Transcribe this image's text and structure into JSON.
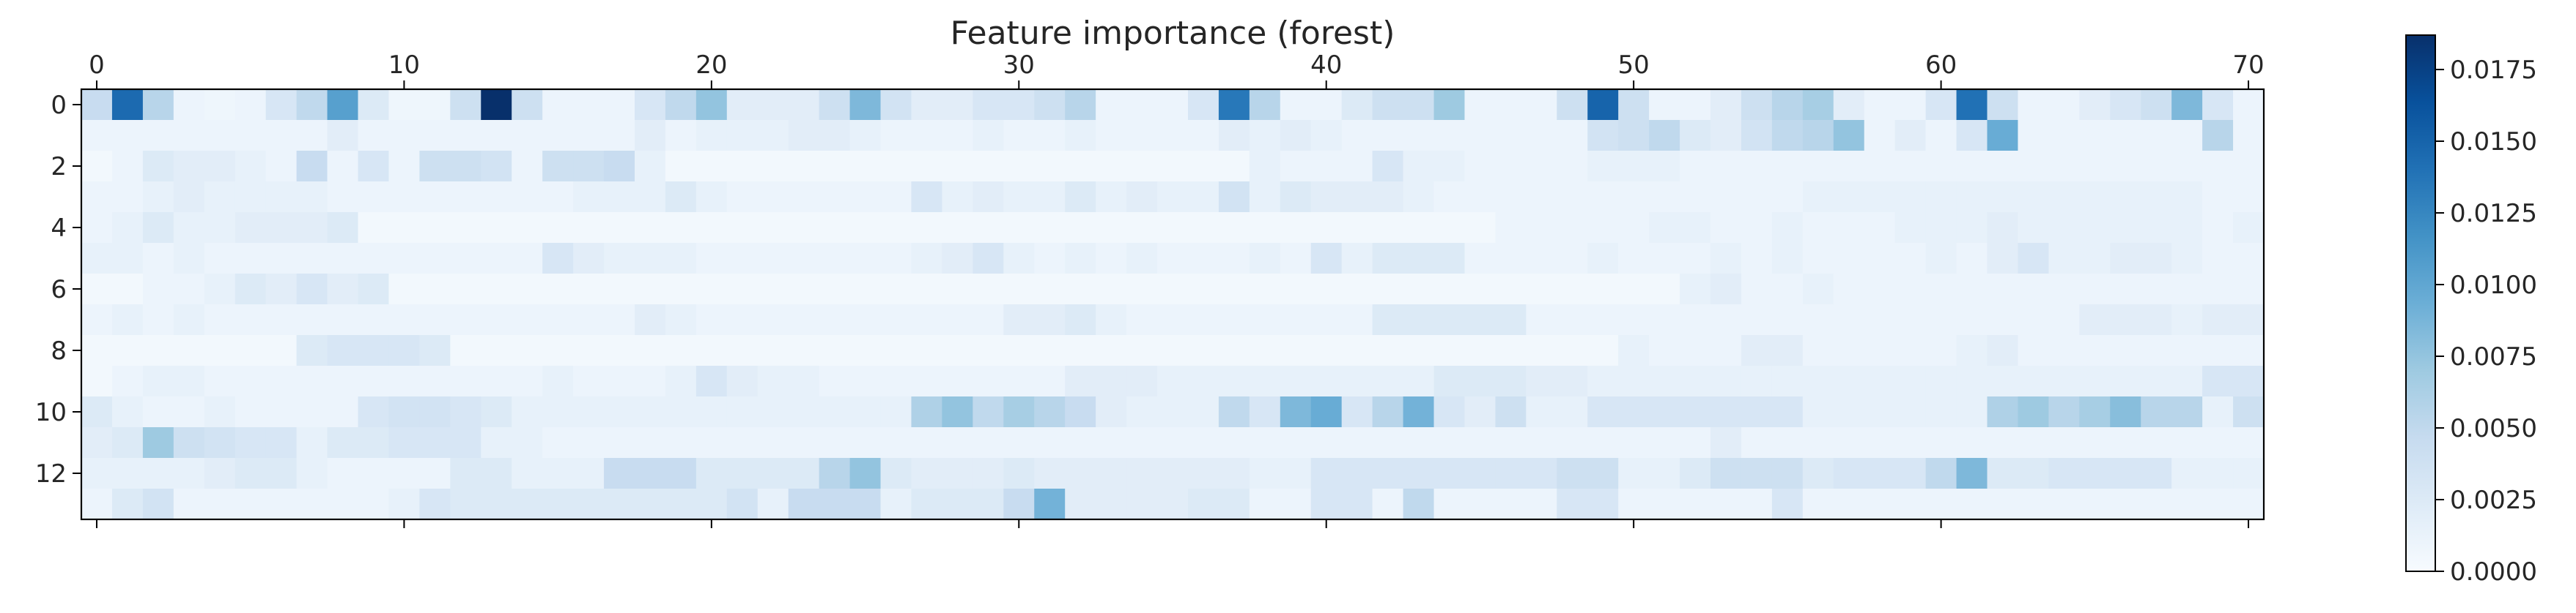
{
  "chart_data": {
    "type": "heatmap",
    "title": "Feature importance (forest)",
    "xlabel": "",
    "ylabel": "",
    "n_rows": 14,
    "n_cols": 71,
    "x_ticks": [
      0,
      10,
      20,
      30,
      40,
      50,
      60,
      70
    ],
    "y_ticks": [
      0,
      2,
      4,
      6,
      8,
      10,
      12
    ],
    "colormap": "Blues",
    "colors": {
      "low": "#f7fbff",
      "high": "#08306b"
    },
    "colorbar": {
      "min": 0.0,
      "max": 0.0187,
      "ticks": [
        0.0,
        0.0025,
        0.005,
        0.0075,
        0.01,
        0.0125,
        0.015,
        0.0175
      ],
      "tick_labels": [
        "0.0000",
        "0.0025",
        "0.0050",
        "0.0075",
        "0.0100",
        "0.0125",
        "0.0150",
        "0.0175"
      ]
    },
    "grid": false,
    "values": [
      [
        0.0045,
        0.0145,
        0.0055,
        0.001,
        0.0008,
        0.001,
        0.003,
        0.005,
        0.0105,
        0.0025,
        0.0008,
        0.0008,
        0.004,
        0.0187,
        0.004,
        0.001,
        0.001,
        0.001,
        0.003,
        0.005,
        0.0075,
        0.002,
        0.002,
        0.002,
        0.004,
        0.0085,
        0.0035,
        0.002,
        0.002,
        0.003,
        0.003,
        0.004,
        0.0055,
        0.001,
        0.001,
        0.001,
        0.003,
        0.0135,
        0.0055,
        0.001,
        0.001,
        0.0025,
        0.004,
        0.004,
        0.007,
        0.001,
        0.001,
        0.001,
        0.004,
        0.015,
        0.004,
        0.001,
        0.001,
        0.002,
        0.004,
        0.0055,
        0.0065,
        0.002,
        0.001,
        0.001,
        0.003,
        0.014,
        0.004,
        0.001,
        0.001,
        0.002,
        0.003,
        0.004,
        0.0085,
        0.003,
        0.001
      ],
      [
        0.001,
        0.001,
        0.001,
        0.001,
        0.001,
        0.001,
        0.001,
        0.001,
        0.002,
        0.001,
        0.001,
        0.001,
        0.001,
        0.001,
        0.001,
        0.001,
        0.001,
        0.001,
        0.002,
        0.001,
        0.0015,
        0.0015,
        0.0015,
        0.002,
        0.002,
        0.0015,
        0.001,
        0.001,
        0.001,
        0.0015,
        0.001,
        0.001,
        0.0015,
        0.001,
        0.001,
        0.001,
        0.001,
        0.002,
        0.0015,
        0.002,
        0.0015,
        0.001,
        0.001,
        0.001,
        0.001,
        0.001,
        0.001,
        0.001,
        0.001,
        0.0035,
        0.004,
        0.005,
        0.0025,
        0.002,
        0.0035,
        0.005,
        0.0055,
        0.0075,
        0.001,
        0.002,
        0.001,
        0.003,
        0.0095,
        0.001,
        0.001,
        0.001,
        0.001,
        0.001,
        0.001,
        0.0055,
        0.001
      ],
      [
        0.0005,
        0.001,
        0.0025,
        0.002,
        0.002,
        0.0015,
        0.001,
        0.0045,
        0.001,
        0.003,
        0.001,
        0.004,
        0.004,
        0.0035,
        0.001,
        0.004,
        0.004,
        0.0045,
        0.0015,
        0.0005,
        0.0005,
        0.0005,
        0.0005,
        0.0005,
        0.0005,
        0.0005,
        0.0005,
        0.0005,
        0.0005,
        0.0005,
        0.0005,
        0.0005,
        0.0005,
        0.0005,
        0.0005,
        0.0005,
        0.0005,
        0.0005,
        0.0015,
        0.001,
        0.001,
        0.001,
        0.003,
        0.0015,
        0.0015,
        0.001,
        0.001,
        0.001,
        0.001,
        0.0015,
        0.0015,
        0.0015,
        0.001,
        0.001,
        0.001,
        0.001,
        0.001,
        0.001,
        0.001,
        0.001,
        0.001,
        0.001,
        0.001,
        0.001,
        0.001,
        0.001,
        0.001,
        0.001,
        0.001,
        0.001,
        0.001
      ],
      [
        0.001,
        0.001,
        0.0015,
        0.002,
        0.0015,
        0.0015,
        0.0015,
        0.0015,
        0.001,
        0.001,
        0.001,
        0.001,
        0.001,
        0.001,
        0.001,
        0.001,
        0.0015,
        0.0015,
        0.0015,
        0.0025,
        0.0015,
        0.001,
        0.001,
        0.001,
        0.001,
        0.001,
        0.001,
        0.003,
        0.0015,
        0.002,
        0.0015,
        0.0015,
        0.0025,
        0.0015,
        0.002,
        0.0015,
        0.0015,
        0.0035,
        0.0015,
        0.0025,
        0.002,
        0.002,
        0.002,
        0.0015,
        0.001,
        0.001,
        0.001,
        0.001,
        0.001,
        0.001,
        0.001,
        0.001,
        0.001,
        0.001,
        0.001,
        0.001,
        0.0015,
        0.0015,
        0.0015,
        0.0015,
        0.0015,
        0.0015,
        0.0015,
        0.0015,
        0.0015,
        0.0015,
        0.0015,
        0.0015,
        0.0015,
        0.001,
        0.001
      ],
      [
        0.001,
        0.0015,
        0.0025,
        0.0015,
        0.0015,
        0.002,
        0.002,
        0.002,
        0.0025,
        0.0005,
        0.0005,
        0.0005,
        0.0005,
        0.0005,
        0.0005,
        0.0005,
        0.0005,
        0.0005,
        0.0005,
        0.0005,
        0.0005,
        0.0005,
        0.0005,
        0.0005,
        0.0005,
        0.0005,
        0.0005,
        0.0005,
        0.0005,
        0.0005,
        0.0005,
        0.0005,
        0.0005,
        0.0005,
        0.0005,
        0.0005,
        0.0005,
        0.0005,
        0.0005,
        0.0005,
        0.0005,
        0.0005,
        0.0005,
        0.0005,
        0.0005,
        0.0005,
        0.001,
        0.001,
        0.001,
        0.001,
        0.001,
        0.0015,
        0.0015,
        0.001,
        0.001,
        0.0015,
        0.001,
        0.001,
        0.001,
        0.0015,
        0.0015,
        0.0015,
        0.002,
        0.0015,
        0.0015,
        0.0015,
        0.0015,
        0.0015,
        0.0015,
        0.001,
        0.0015
      ],
      [
        0.0015,
        0.0015,
        0.001,
        0.0015,
        0.001,
        0.001,
        0.001,
        0.001,
        0.001,
        0.001,
        0.001,
        0.001,
        0.001,
        0.001,
        0.001,
        0.003,
        0.002,
        0.0015,
        0.0015,
        0.0015,
        0.001,
        0.001,
        0.001,
        0.001,
        0.001,
        0.001,
        0.001,
        0.0015,
        0.002,
        0.003,
        0.0015,
        0.001,
        0.0015,
        0.001,
        0.0015,
        0.001,
        0.001,
        0.001,
        0.0015,
        0.001,
        0.003,
        0.0015,
        0.0025,
        0.0025,
        0.0025,
        0.001,
        0.001,
        0.001,
        0.001,
        0.0015,
        0.001,
        0.001,
        0.001,
        0.0015,
        0.001,
        0.0015,
        0.001,
        0.001,
        0.001,
        0.001,
        0.0015,
        0.001,
        0.002,
        0.003,
        0.0015,
        0.0015,
        0.002,
        0.002,
        0.0015,
        0.001,
        0.001
      ],
      [
        0.0005,
        0.0005,
        0.001,
        0.001,
        0.0015,
        0.0025,
        0.002,
        0.003,
        0.002,
        0.0025,
        0.0005,
        0.0005,
        0.0005,
        0.0005,
        0.0005,
        0.0005,
        0.0005,
        0.0005,
        0.0005,
        0.0005,
        0.0005,
        0.0005,
        0.0005,
        0.0005,
        0.0005,
        0.0005,
        0.0005,
        0.0005,
        0.0005,
        0.0005,
        0.0005,
        0.0005,
        0.0005,
        0.0005,
        0.0005,
        0.0005,
        0.0005,
        0.0005,
        0.0005,
        0.0005,
        0.0005,
        0.0005,
        0.0005,
        0.0005,
        0.0005,
        0.0005,
        0.0005,
        0.0005,
        0.0005,
        0.0005,
        0.0005,
        0.0005,
        0.0015,
        0.002,
        0.001,
        0.001,
        0.0015,
        0.001,
        0.001,
        0.001,
        0.001,
        0.001,
        0.001,
        0.001,
        0.001,
        0.001,
        0.001,
        0.001,
        0.001,
        0.001,
        0.001
      ],
      [
        0.001,
        0.0015,
        0.001,
        0.0015,
        0.001,
        0.001,
        0.001,
        0.001,
        0.001,
        0.001,
        0.001,
        0.001,
        0.001,
        0.001,
        0.001,
        0.001,
        0.001,
        0.001,
        0.002,
        0.0015,
        0.001,
        0.001,
        0.001,
        0.001,
        0.001,
        0.001,
        0.001,
        0.001,
        0.001,
        0.001,
        0.002,
        0.002,
        0.0025,
        0.0015,
        0.001,
        0.001,
        0.001,
        0.001,
        0.001,
        0.001,
        0.001,
        0.001,
        0.0025,
        0.0025,
        0.0025,
        0.0025,
        0.0025,
        0.001,
        0.001,
        0.001,
        0.001,
        0.001,
        0.001,
        0.001,
        0.001,
        0.001,
        0.001,
        0.001,
        0.001,
        0.001,
        0.001,
        0.001,
        0.001,
        0.001,
        0.001,
        0.002,
        0.002,
        0.002,
        0.0015,
        0.002,
        0.002
      ],
      [
        0.0005,
        0.0005,
        0.0005,
        0.0005,
        0.0005,
        0.0005,
        0.0005,
        0.0025,
        0.003,
        0.003,
        0.003,
        0.0025,
        0.0005,
        0.0005,
        0.0005,
        0.0005,
        0.0005,
        0.0005,
        0.0005,
        0.0005,
        0.0005,
        0.0005,
        0.0005,
        0.0005,
        0.0005,
        0.0005,
        0.0005,
        0.0005,
        0.0005,
        0.0005,
        0.0005,
        0.0005,
        0.0005,
        0.0005,
        0.0005,
        0.0005,
        0.0005,
        0.0005,
        0.0005,
        0.0005,
        0.0005,
        0.0005,
        0.0005,
        0.0005,
        0.0005,
        0.0005,
        0.0005,
        0.0005,
        0.0005,
        0.0005,
        0.0015,
        0.001,
        0.001,
        0.001,
        0.002,
        0.002,
        0.001,
        0.001,
        0.001,
        0.001,
        0.001,
        0.0015,
        0.002,
        0.001,
        0.001,
        0.001,
        0.001,
        0.001,
        0.001,
        0.001,
        0.001
      ],
      [
        0.0005,
        0.001,
        0.0015,
        0.0015,
        0.001,
        0.001,
        0.001,
        0.001,
        0.001,
        0.001,
        0.001,
        0.001,
        0.001,
        0.001,
        0.001,
        0.0015,
        0.001,
        0.001,
        0.001,
        0.0015,
        0.003,
        0.002,
        0.0015,
        0.0015,
        0.001,
        0.001,
        0.001,
        0.001,
        0.001,
        0.001,
        0.001,
        0.001,
        0.002,
        0.002,
        0.002,
        0.0015,
        0.0015,
        0.0015,
        0.0015,
        0.0015,
        0.0015,
        0.0015,
        0.0015,
        0.0015,
        0.0025,
        0.0025,
        0.0025,
        0.002,
        0.002,
        0.0015,
        0.0015,
        0.0015,
        0.0015,
        0.0015,
        0.0015,
        0.0015,
        0.0015,
        0.0015,
        0.0015,
        0.0015,
        0.0015,
        0.0015,
        0.0015,
        0.0015,
        0.0015,
        0.0015,
        0.0015,
        0.0015,
        0.0015,
        0.003,
        0.003
      ],
      [
        0.0025,
        0.0015,
        0.001,
        0.001,
        0.0015,
        0.001,
        0.001,
        0.001,
        0.001,
        0.003,
        0.0035,
        0.0035,
        0.003,
        0.0025,
        0.0015,
        0.0015,
        0.0015,
        0.0015,
        0.0015,
        0.0015,
        0.0015,
        0.0015,
        0.0015,
        0.0015,
        0.0015,
        0.0015,
        0.0015,
        0.006,
        0.0075,
        0.005,
        0.0065,
        0.0055,
        0.0045,
        0.002,
        0.0015,
        0.0015,
        0.0015,
        0.005,
        0.003,
        0.0085,
        0.0095,
        0.003,
        0.0055,
        0.009,
        0.003,
        0.002,
        0.004,
        0.0015,
        0.0015,
        0.003,
        0.003,
        0.003,
        0.003,
        0.003,
        0.003,
        0.003,
        0.0015,
        0.0015,
        0.0015,
        0.0015,
        0.0015,
        0.0015,
        0.006,
        0.007,
        0.0055,
        0.0065,
        0.008,
        0.0055,
        0.0055,
        0.0015,
        0.004
      ],
      [
        0.002,
        0.0025,
        0.007,
        0.004,
        0.0035,
        0.003,
        0.003,
        0.0015,
        0.0025,
        0.0025,
        0.003,
        0.003,
        0.003,
        0.0015,
        0.0015,
        0.001,
        0.001,
        0.001,
        0.001,
        0.001,
        0.001,
        0.001,
        0.001,
        0.001,
        0.001,
        0.001,
        0.001,
        0.001,
        0.001,
        0.001,
        0.001,
        0.001,
        0.001,
        0.001,
        0.001,
        0.001,
        0.001,
        0.001,
        0.001,
        0.001,
        0.001,
        0.001,
        0.001,
        0.001,
        0.001,
        0.001,
        0.001,
        0.001,
        0.001,
        0.001,
        0.001,
        0.001,
        0.001,
        0.002,
        0.001,
        0.001,
        0.001,
        0.001,
        0.001,
        0.001,
        0.001,
        0.001,
        0.001,
        0.001,
        0.001,
        0.001,
        0.001,
        0.001,
        0.001,
        0.001,
        0.001
      ],
      [
        0.0015,
        0.0015,
        0.0015,
        0.0015,
        0.002,
        0.0025,
        0.0025,
        0.0015,
        0.001,
        0.001,
        0.001,
        0.001,
        0.0025,
        0.0025,
        0.0015,
        0.0015,
        0.0015,
        0.0045,
        0.0045,
        0.0045,
        0.0025,
        0.0025,
        0.0025,
        0.0025,
        0.0055,
        0.0075,
        0.0025,
        0.002,
        0.002,
        0.002,
        0.0025,
        0.002,
        0.002,
        0.002,
        0.002,
        0.002,
        0.002,
        0.002,
        0.0015,
        0.0015,
        0.003,
        0.003,
        0.003,
        0.003,
        0.003,
        0.003,
        0.003,
        0.003,
        0.004,
        0.004,
        0.0015,
        0.0015,
        0.0025,
        0.004,
        0.004,
        0.004,
        0.0025,
        0.003,
        0.003,
        0.003,
        0.005,
        0.0085,
        0.0025,
        0.0025,
        0.003,
        0.003,
        0.003,
        0.003,
        0.0015,
        0.0015,
        0.0015
      ],
      [
        0.001,
        0.0025,
        0.0035,
        0.001,
        0.001,
        0.001,
        0.001,
        0.001,
        0.001,
        0.001,
        0.0015,
        0.003,
        0.0025,
        0.0025,
        0.0025,
        0.0025,
        0.0025,
        0.0025,
        0.0025,
        0.0025,
        0.0025,
        0.0035,
        0.0015,
        0.0045,
        0.0045,
        0.0045,
        0.0015,
        0.0025,
        0.0025,
        0.0025,
        0.0045,
        0.009,
        0.002,
        0.002,
        0.002,
        0.002,
        0.0025,
        0.0025,
        0.001,
        0.001,
        0.003,
        0.003,
        0.001,
        0.005,
        0.001,
        0.001,
        0.001,
        0.001,
        0.003,
        0.003,
        0.001,
        0.001,
        0.001,
        0.001,
        0.001,
        0.003,
        0.001,
        0.001,
        0.001,
        0.001,
        0.001,
        0.001,
        0.001,
        0.001,
        0.001,
        0.001,
        0.001,
        0.001,
        0.001,
        0.001,
        0.001
      ]
    ]
  }
}
